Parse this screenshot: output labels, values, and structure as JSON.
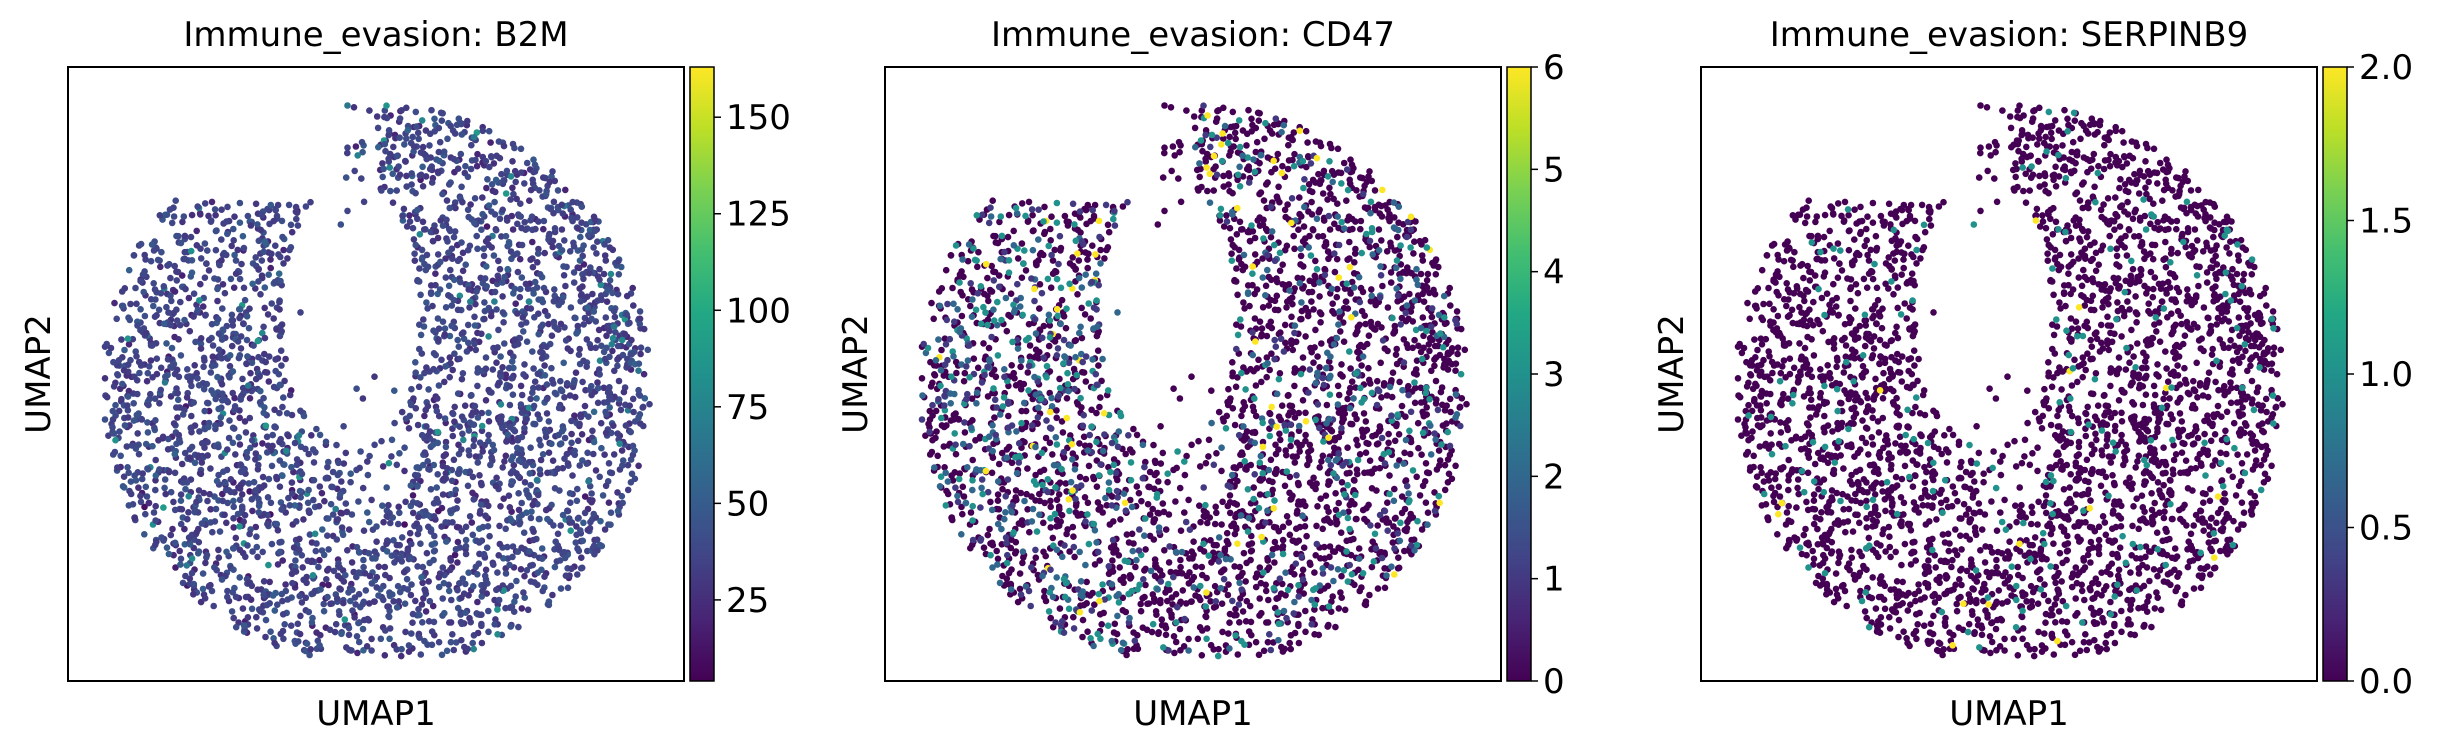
{
  "chart_data": [
    {
      "type": "scatter",
      "title": "Immune_evasion: B2M",
      "xlabel": "UMAP1",
      "ylabel": "UMAP2",
      "colorbar": {
        "ticks": [
          "25",
          "50",
          "75",
          "100",
          "125",
          "150"
        ],
        "vmin": 4,
        "vmax": 163,
        "colormap": "viridis"
      },
      "point_color_summary": {
        "typical": 35,
        "spread": 12,
        "rare_high": 65,
        "rare_high_fraction": 0.03,
        "max": 163
      }
    },
    {
      "type": "scatter",
      "title": "Immune_evasion: CD47",
      "xlabel": "UMAP1",
      "ylabel": "UMAP2",
      "colorbar": {
        "ticks": [
          "0",
          "1",
          "2",
          "3",
          "4",
          "5",
          "6"
        ],
        "vmin": 0,
        "vmax": 6,
        "colormap": "viridis"
      },
      "point_color_summary": {
        "typical": 0,
        "nonzero_fraction": 0.22,
        "common_nonzero": [
          1,
          2,
          3
        ],
        "max": 6
      }
    },
    {
      "type": "scatter",
      "title": "Immune_evasion: SERPINB9",
      "xlabel": "UMAP1",
      "ylabel": "UMAP2",
      "colorbar": {
        "ticks": [
          "0.0",
          "0.5",
          "1.0",
          "1.5",
          "2.0"
        ],
        "vmin": 0,
        "vmax": 2,
        "colormap": "viridis"
      },
      "point_color_summary": {
        "typical": 0,
        "nonzero_fraction": 0.06,
        "common_nonzero": [
          1
        ],
        "max": 2
      }
    }
  ]
}
